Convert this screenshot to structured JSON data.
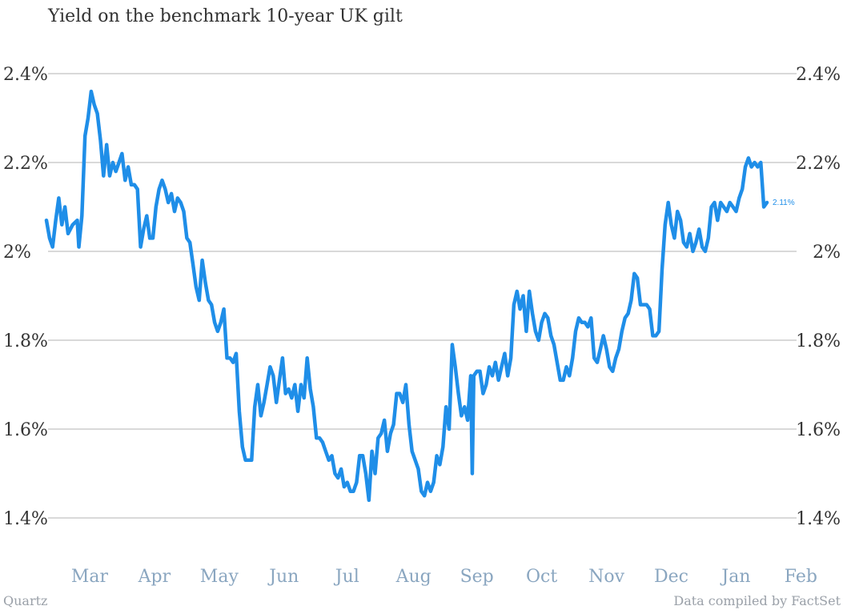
{
  "colors": {
    "line": "#1f8ee8",
    "grid": "#b3b3b3",
    "xtick": "#8aa6c0"
  },
  "footer": {
    "left": "Quartz",
    "right": "Data compiled by FactSet"
  },
  "chart_data": {
    "type": "line",
    "title": "Yield on the benchmark 10-year UK gilt",
    "xlabel": "",
    "ylabel": "",
    "ylim": [
      1.3,
      2.5
    ],
    "grid": true,
    "y_ticks": [
      {
        "value": 1.4,
        "label": "1.4%"
      },
      {
        "value": 1.6,
        "label": "1.6%"
      },
      {
        "value": 1.8,
        "label": "1.8%"
      },
      {
        "value": 2.0,
        "label": "2%"
      },
      {
        "value": 2.2,
        "label": "2.2%"
      },
      {
        "value": 2.4,
        "label": "2.4%"
      }
    ],
    "x_ticks": [
      {
        "i": 28,
        "label": "Mar"
      },
      {
        "i": 70,
        "label": "Apr"
      },
      {
        "i": 112,
        "label": "May"
      },
      {
        "i": 154,
        "label": "Jun"
      },
      {
        "i": 195,
        "label": "Jul"
      },
      {
        "i": 238,
        "label": "Aug"
      },
      {
        "i": 279,
        "label": "Sep"
      },
      {
        "i": 321,
        "label": "Oct"
      },
      {
        "i": 363,
        "label": "Nov"
      },
      {
        "i": 405,
        "label": "Dec"
      },
      {
        "i": 447,
        "label": "Jan"
      },
      {
        "i": 489,
        "label": "Feb"
      }
    ],
    "end_label": "2.11%",
    "series": [
      {
        "values": [
          [
            0,
            2.07
          ],
          [
            2,
            2.03
          ],
          [
            4,
            2.01
          ],
          [
            6,
            2.07
          ],
          [
            8,
            2.12
          ],
          [
            10,
            2.06
          ],
          [
            12,
            2.1
          ],
          [
            14,
            2.04
          ],
          [
            17,
            2.06
          ],
          [
            20,
            2.07
          ],
          [
            21,
            2.01
          ],
          [
            23,
            2.08
          ],
          [
            25,
            2.26
          ],
          [
            27,
            2.3
          ],
          [
            29,
            2.36
          ],
          [
            31,
            2.33
          ],
          [
            33,
            2.31
          ],
          [
            35,
            2.25
          ],
          [
            37,
            2.17
          ],
          [
            39,
            2.24
          ],
          [
            41,
            2.17
          ],
          [
            43,
            2.2
          ],
          [
            45,
            2.18
          ],
          [
            47,
            2.2
          ],
          [
            49,
            2.22
          ],
          [
            51,
            2.16
          ],
          [
            53,
            2.19
          ],
          [
            55,
            2.15
          ],
          [
            57,
            2.15
          ],
          [
            59,
            2.14
          ],
          [
            61,
            2.01
          ],
          [
            63,
            2.05
          ],
          [
            65,
            2.08
          ],
          [
            67,
            2.03
          ],
          [
            69,
            2.03
          ],
          [
            71,
            2.1
          ],
          [
            73,
            2.14
          ],
          [
            75,
            2.16
          ],
          [
            77,
            2.14
          ],
          [
            79,
            2.11
          ],
          [
            81,
            2.13
          ],
          [
            83,
            2.09
          ],
          [
            85,
            2.12
          ],
          [
            87,
            2.11
          ],
          [
            89,
            2.09
          ],
          [
            91,
            2.03
          ],
          [
            93,
            2.02
          ],
          [
            95,
            1.97
          ],
          [
            97,
            1.92
          ],
          [
            99,
            1.89
          ],
          [
            101,
            1.98
          ],
          [
            103,
            1.93
          ],
          [
            105,
            1.89
          ],
          [
            107,
            1.88
          ],
          [
            109,
            1.84
          ],
          [
            111,
            1.82
          ],
          [
            113,
            1.84
          ],
          [
            115,
            1.87
          ],
          [
            117,
            1.76
          ],
          [
            119,
            1.76
          ],
          [
            121,
            1.75
          ],
          [
            123,
            1.77
          ],
          [
            125,
            1.64
          ],
          [
            127,
            1.56
          ],
          [
            129,
            1.53
          ],
          [
            131,
            1.53
          ],
          [
            133,
            1.53
          ],
          [
            135,
            1.65
          ],
          [
            137,
            1.7
          ],
          [
            139,
            1.63
          ],
          [
            141,
            1.66
          ],
          [
            143,
            1.7
          ],
          [
            145,
            1.74
          ],
          [
            147,
            1.72
          ],
          [
            149,
            1.66
          ],
          [
            151,
            1.71
          ],
          [
            153,
            1.76
          ],
          [
            155,
            1.68
          ],
          [
            157,
            1.69
          ],
          [
            159,
            1.67
          ],
          [
            161,
            1.7
          ],
          [
            163,
            1.64
          ],
          [
            165,
            1.7
          ],
          [
            167,
            1.67
          ],
          [
            169,
            1.76
          ],
          [
            171,
            1.69
          ],
          [
            173,
            1.65
          ],
          [
            175,
            1.58
          ],
          [
            177,
            1.58
          ],
          [
            179,
            1.57
          ],
          [
            181,
            1.55
          ],
          [
            183,
            1.53
          ],
          [
            185,
            1.54
          ],
          [
            187,
            1.5
          ],
          [
            189,
            1.49
          ],
          [
            191,
            1.51
          ],
          [
            193,
            1.47
          ],
          [
            195,
            1.48
          ],
          [
            197,
            1.46
          ],
          [
            199,
            1.46
          ],
          [
            201,
            1.48
          ],
          [
            203,
            1.54
          ],
          [
            205,
            1.54
          ],
          [
            207,
            1.5
          ],
          [
            209,
            1.44
          ],
          [
            211,
            1.55
          ],
          [
            213,
            1.5
          ],
          [
            215,
            1.58
          ],
          [
            217,
            1.59
          ],
          [
            219,
            1.62
          ],
          [
            221,
            1.55
          ],
          [
            223,
            1.59
          ],
          [
            225,
            1.61
          ],
          [
            227,
            1.68
          ],
          [
            229,
            1.68
          ],
          [
            231,
            1.66
          ],
          [
            233,
            1.7
          ],
          [
            235,
            1.61
          ],
          [
            237,
            1.55
          ],
          [
            239,
            1.53
          ],
          [
            241,
            1.51
          ],
          [
            243,
            1.46
          ],
          [
            245,
            1.45
          ],
          [
            247,
            1.48
          ],
          [
            249,
            1.46
          ],
          [
            251,
            1.48
          ],
          [
            253,
            1.54
          ],
          [
            255,
            1.52
          ],
          [
            257,
            1.56
          ],
          [
            259,
            1.65
          ],
          [
            261,
            1.6
          ],
          [
            263,
            1.79
          ],
          [
            265,
            1.74
          ],
          [
            267,
            1.68
          ],
          [
            269,
            1.63
          ],
          [
            271,
            1.65
          ],
          [
            273,
            1.62
          ],
          [
            275,
            1.72
          ],
          [
            276,
            1.5
          ],
          [
            277,
            1.72
          ],
          [
            279,
            1.73
          ],
          [
            281,
            1.73
          ],
          [
            283,
            1.68
          ],
          [
            285,
            1.7
          ],
          [
            287,
            1.74
          ],
          [
            289,
            1.72
          ],
          [
            291,
            1.75
          ],
          [
            293,
            1.71
          ],
          [
            295,
            1.74
          ],
          [
            297,
            1.77
          ],
          [
            299,
            1.72
          ],
          [
            301,
            1.76
          ],
          [
            303,
            1.88
          ],
          [
            305,
            1.91
          ],
          [
            307,
            1.87
          ],
          [
            309,
            1.9
          ],
          [
            311,
            1.82
          ],
          [
            313,
            1.91
          ],
          [
            315,
            1.86
          ],
          [
            317,
            1.82
          ],
          [
            319,
            1.8
          ],
          [
            321,
            1.84
          ],
          [
            323,
            1.86
          ],
          [
            325,
            1.85
          ],
          [
            327,
            1.81
          ],
          [
            329,
            1.79
          ],
          [
            331,
            1.75
          ],
          [
            333,
            1.71
          ],
          [
            335,
            1.71
          ],
          [
            337,
            1.74
          ],
          [
            339,
            1.72
          ],
          [
            341,
            1.76
          ],
          [
            343,
            1.82
          ],
          [
            345,
            1.85
          ],
          [
            347,
            1.84
          ],
          [
            349,
            1.84
          ],
          [
            351,
            1.83
          ],
          [
            353,
            1.85
          ],
          [
            355,
            1.76
          ],
          [
            357,
            1.75
          ],
          [
            359,
            1.78
          ],
          [
            361,
            1.81
          ],
          [
            363,
            1.78
          ],
          [
            365,
            1.74
          ],
          [
            367,
            1.73
          ],
          [
            369,
            1.76
          ],
          [
            371,
            1.78
          ],
          [
            373,
            1.82
          ],
          [
            375,
            1.85
          ],
          [
            377,
            1.86
          ],
          [
            379,
            1.89
          ],
          [
            381,
            1.95
          ],
          [
            383,
            1.94
          ],
          [
            385,
            1.88
          ],
          [
            387,
            1.88
          ],
          [
            389,
            1.88
          ],
          [
            391,
            1.87
          ],
          [
            393,
            1.81
          ],
          [
            395,
            1.81
          ],
          [
            397,
            1.82
          ],
          [
            399,
            1.96
          ],
          [
            401,
            2.06
          ],
          [
            403,
            2.11
          ],
          [
            405,
            2.06
          ],
          [
            407,
            2.03
          ],
          [
            409,
            2.09
          ],
          [
            411,
            2.07
          ],
          [
            413,
            2.02
          ],
          [
            415,
            2.01
          ],
          [
            417,
            2.04
          ],
          [
            419,
            2.0
          ],
          [
            421,
            2.02
          ],
          [
            423,
            2.05
          ],
          [
            425,
            2.01
          ],
          [
            427,
            2.0
          ],
          [
            429,
            2.03
          ],
          [
            431,
            2.1
          ],
          [
            433,
            2.11
          ],
          [
            435,
            2.07
          ],
          [
            437,
            2.11
          ],
          [
            439,
            2.1
          ],
          [
            441,
            2.09
          ],
          [
            443,
            2.11
          ],
          [
            445,
            2.1
          ],
          [
            447,
            2.09
          ],
          [
            449,
            2.12
          ],
          [
            451,
            2.14
          ],
          [
            453,
            2.19
          ],
          [
            455,
            2.21
          ],
          [
            457,
            2.19
          ],
          [
            459,
            2.2
          ],
          [
            461,
            2.19
          ],
          [
            463,
            2.2
          ],
          [
            465,
            2.1
          ],
          [
            467,
            2.11
          ]
        ]
      }
    ]
  }
}
